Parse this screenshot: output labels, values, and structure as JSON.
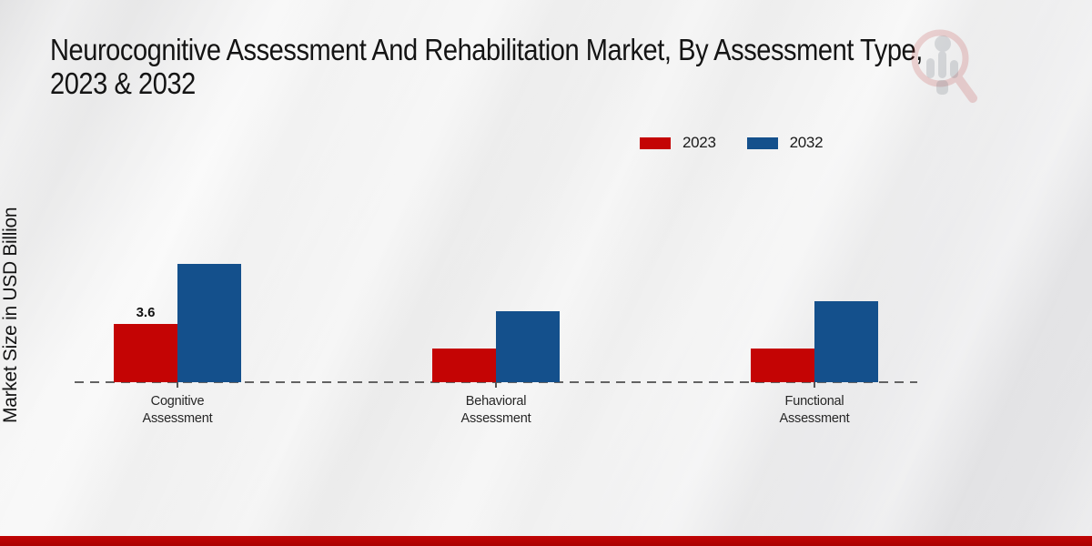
{
  "title": {
    "line1": "Neurocognitive Assessment And Rehabilitation Market, By Assessment Type,",
    "line2": "2023 & 2032"
  },
  "y_axis_label": "Market Size in USD Billion",
  "colors": {
    "series_2023": "#c40404",
    "series_2032": "#14508c",
    "footer_strip": "#b80404",
    "baseline": "#636363"
  },
  "watermark": {
    "description": "magnifier-bar-chart-logo"
  },
  "chart_data": {
    "type": "bar",
    "title": "Neurocognitive Assessment And Rehabilitation Market, By Assessment Type, 2023 & 2032",
    "xlabel": "",
    "ylabel": "Market Size in USD Billion",
    "categories": [
      "Cognitive Assessment",
      "Behavioral Assessment",
      "Functional Assessment"
    ],
    "series": [
      {
        "name": "2023",
        "color": "#c40404",
        "values": [
          3.6,
          2.1,
          2.1
        ],
        "data_labels": [
          "3.6",
          "",
          ""
        ]
      },
      {
        "name": "2032",
        "color": "#14508c",
        "values": [
          7.3,
          4.4,
          5.0
        ],
        "data_labels": [
          "",
          "",
          ""
        ]
      }
    ],
    "ylim": [
      0,
      9
    ],
    "y_axis_ticks_visible": false,
    "grid": false,
    "baseline_style": "dashed",
    "legend_position": "top-right"
  }
}
